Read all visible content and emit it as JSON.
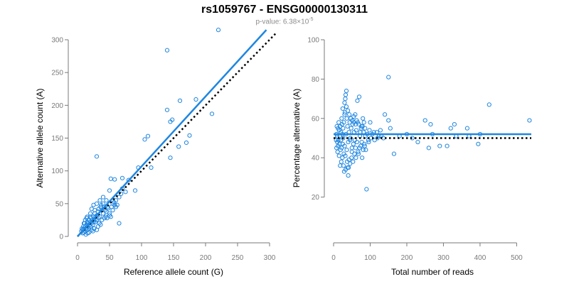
{
  "title": "rs1059767 - ENSG00000130311",
  "subtitle": {
    "prefix": "p-value: 6.38×10",
    "exponent": "-5"
  },
  "colors": {
    "accent": "#1f86e0",
    "points": "#1f86e0",
    "axis": "#7a7a7a",
    "reference_line": "#000000"
  },
  "chart_data": [
    {
      "type": "scatter",
      "xlabel": "Reference allele count (G)",
      "ylabel": "Alternative allele count (A)",
      "xlim": [
        0,
        300
      ],
      "ylim": [
        0,
        300
      ],
      "xticks": [
        "0",
        "50",
        "100",
        "150",
        "200",
        "250",
        "300"
      ],
      "yticks": [
        "0",
        "50",
        "100",
        "150",
        "200",
        "250",
        "300"
      ],
      "fit_line": {
        "style": "solid",
        "x": [
          0,
          295
        ],
        "y": [
          0,
          315
        ]
      },
      "reference_line": {
        "style": "dotted",
        "x": [
          0,
          310
        ],
        "y": [
          0,
          310
        ]
      },
      "points": [
        [
          220,
          315
        ],
        [
          140,
          284
        ],
        [
          30,
          122
        ],
        [
          185,
          209
        ],
        [
          210,
          187
        ],
        [
          160,
          207
        ],
        [
          140,
          193
        ],
        [
          145,
          175
        ],
        [
          148,
          178
        ],
        [
          170,
          143
        ],
        [
          175,
          154
        ],
        [
          158,
          137
        ],
        [
          145,
          120
        ],
        [
          105,
          148
        ],
        [
          110,
          153
        ],
        [
          115,
          105
        ],
        [
          95,
          105
        ],
        [
          90,
          70
        ],
        [
          80,
          86
        ],
        [
          70,
          89
        ],
        [
          70,
          73
        ],
        [
          75,
          68
        ],
        [
          65,
          20
        ],
        [
          60,
          55
        ],
        [
          58,
          48
        ],
        [
          55,
          50
        ],
        [
          52,
          88
        ],
        [
          58,
          87
        ],
        [
          50,
          70
        ],
        [
          48,
          43
        ],
        [
          45,
          38
        ],
        [
          42,
          45
        ],
        [
          40,
          35
        ],
        [
          40,
          50
        ],
        [
          38,
          40
        ],
        [
          35,
          30
        ],
        [
          36,
          45
        ],
        [
          33,
          28
        ],
        [
          32,
          38
        ],
        [
          30,
          32
        ],
        [
          30,
          25
        ],
        [
          28,
          30
        ],
        [
          27,
          35
        ],
        [
          26,
          25
        ],
        [
          25,
          22
        ],
        [
          25,
          30
        ],
        [
          24,
          18
        ],
        [
          23,
          25
        ],
        [
          22,
          20
        ],
        [
          21,
          28
        ],
        [
          20,
          15
        ],
        [
          20,
          22
        ],
        [
          19,
          18
        ],
        [
          18,
          25
        ],
        [
          18,
          12
        ],
        [
          17,
          20
        ],
        [
          16,
          15
        ],
        [
          15,
          22
        ],
        [
          15,
          10
        ],
        [
          14,
          18
        ],
        [
          13,
          12
        ],
        [
          12,
          15
        ],
        [
          12,
          8
        ],
        [
          11,
          20
        ],
        [
          10,
          12
        ],
        [
          10,
          6
        ],
        [
          9,
          15
        ],
        [
          8,
          10
        ],
        [
          8,
          5
        ],
        [
          7,
          12
        ],
        [
          6,
          8
        ],
        [
          12,
          25
        ],
        [
          14,
          28
        ],
        [
          20,
          35
        ],
        [
          22,
          42
        ],
        [
          28,
          22
        ],
        [
          34,
          20
        ],
        [
          38,
          25
        ],
        [
          44,
          30
        ],
        [
          46,
          28
        ],
        [
          50,
          35
        ],
        [
          52,
          30
        ],
        [
          35,
          55
        ],
        [
          30,
          50
        ],
        [
          25,
          48
        ],
        [
          15,
          30
        ],
        [
          10,
          20
        ],
        [
          40,
          60
        ],
        [
          45,
          55
        ],
        [
          55,
          40
        ],
        [
          60,
          45
        ],
        [
          65,
          60
        ],
        [
          50,
          32
        ],
        [
          42,
          28
        ],
        [
          36,
          18
        ],
        [
          32,
          15
        ],
        [
          26,
          12
        ],
        [
          22,
          10
        ],
        [
          18,
          6
        ],
        [
          24,
          8
        ],
        [
          16,
          5
        ],
        [
          13,
          3
        ],
        [
          30,
          10
        ],
        [
          20,
          30
        ],
        [
          27,
          40
        ],
        [
          33,
          42
        ],
        [
          37,
          48
        ],
        [
          43,
          40
        ],
        [
          47,
          45
        ],
        [
          53,
          45
        ],
        [
          57,
          52
        ],
        [
          62,
          48
        ],
        [
          68,
          65
        ]
      ]
    },
    {
      "type": "scatter",
      "xlabel": "Total number of reads",
      "ylabel": "Percentage alternative (A)",
      "xlim": [
        0,
        540
      ],
      "ylim": [
        0,
        100
      ],
      "xticks": [
        "0",
        "100",
        "200",
        "300",
        "400",
        "500"
      ],
      "yticks": [
        "20",
        "40",
        "60",
        "80",
        "100"
      ],
      "fit_line": {
        "style": "solid",
        "x": [
          0,
          540
        ],
        "y": [
          52,
          52
        ]
      },
      "reference_line": {
        "style": "dotted",
        "x": [
          0,
          540
        ],
        "y": [
          50,
          50
        ]
      },
      "points": [
        [
          150,
          81
        ],
        [
          425,
          67
        ],
        [
          535,
          59
        ],
        [
          90,
          24
        ],
        [
          165,
          42
        ],
        [
          150,
          59
        ],
        [
          140,
          62
        ],
        [
          155,
          55
        ],
        [
          180,
          51
        ],
        [
          200,
          52
        ],
        [
          215,
          50
        ],
        [
          230,
          48
        ],
        [
          250,
          59
        ],
        [
          260,
          45
        ],
        [
          265,
          57
        ],
        [
          270,
          52
        ],
        [
          290,
          46
        ],
        [
          310,
          46
        ],
        [
          320,
          55
        ],
        [
          330,
          57
        ],
        [
          335,
          51
        ],
        [
          365,
          55
        ],
        [
          370,
          51
        ],
        [
          395,
          47
        ],
        [
          400,
          52
        ],
        [
          130,
          51
        ],
        [
          120,
          50
        ],
        [
          110,
          53
        ],
        [
          100,
          58
        ],
        [
          95,
          49
        ],
        [
          80,
          60
        ],
        [
          75,
          55
        ],
        [
          70,
          71
        ],
        [
          65,
          69
        ],
        [
          60,
          57
        ],
        [
          55,
          61
        ],
        [
          50,
          45
        ],
        [
          45,
          49
        ],
        [
          42,
          53
        ],
        [
          40,
          31
        ],
        [
          38,
          35
        ],
        [
          36,
          60
        ],
        [
          35,
          74
        ],
        [
          33,
          72
        ],
        [
          32,
          70
        ],
        [
          30,
          68
        ],
        [
          30,
          62
        ],
        [
          28,
          58
        ],
        [
          28,
          42
        ],
        [
          26,
          55
        ],
        [
          26,
          50
        ],
        [
          25,
          47
        ],
        [
          24,
          40
        ],
        [
          24,
          52
        ],
        [
          23,
          57
        ],
        [
          22,
          45
        ],
        [
          22,
          60
        ],
        [
          21,
          38
        ],
        [
          20,
          53
        ],
        [
          20,
          49
        ],
        [
          19,
          44
        ],
        [
          18,
          56
        ],
        [
          18,
          36
        ],
        [
          17,
          51
        ],
        [
          16,
          47
        ],
        [
          15,
          54
        ],
        [
          15,
          41
        ],
        [
          14,
          58
        ],
        [
          13,
          49
        ],
        [
          12,
          46
        ],
        [
          12,
          55
        ],
        [
          11,
          43
        ],
        [
          10,
          51
        ],
        [
          10,
          48
        ],
        [
          9,
          56
        ],
        [
          8,
          45
        ],
        [
          8,
          52
        ],
        [
          7,
          49
        ],
        [
          30,
          46
        ],
        [
          32,
          41
        ],
        [
          34,
          52
        ],
        [
          36,
          44
        ],
        [
          38,
          56
        ],
        [
          40,
          48
        ],
        [
          42,
          39
        ],
        [
          44,
          58
        ],
        [
          46,
          50
        ],
        [
          48,
          55
        ],
        [
          50,
          43
        ],
        [
          52,
          57
        ],
        [
          54,
          47
        ],
        [
          56,
          53
        ],
        [
          58,
          49
        ],
        [
          60,
          45
        ],
        [
          62,
          54
        ],
        [
          64,
          48
        ],
        [
          66,
          58
        ],
        [
          68,
          42
        ],
        [
          72,
          51
        ],
        [
          74,
          46
        ],
        [
          76,
          56
        ],
        [
          78,
          40
        ],
        [
          82,
          53
        ],
        [
          84,
          47
        ],
        [
          86,
          55
        ],
        [
          88,
          44
        ],
        [
          92,
          52
        ],
        [
          96,
          48
        ],
        [
          98,
          54
        ],
        [
          102,
          50
        ],
        [
          106,
          52
        ],
        [
          112,
          49
        ],
        [
          118,
          53
        ],
        [
          124,
          51
        ],
        [
          128,
          54
        ],
        [
          136,
          50
        ],
        [
          25,
          65
        ],
        [
          27,
          36
        ],
        [
          29,
          33
        ],
        [
          31,
          63
        ],
        [
          33,
          34
        ],
        [
          35,
          66
        ],
        [
          37,
          38
        ],
        [
          39,
          64
        ],
        [
          41,
          35
        ],
        [
          43,
          62
        ],
        [
          45,
          37
        ],
        [
          47,
          60
        ],
        [
          49,
          40
        ],
        [
          51,
          59
        ],
        [
          53,
          38
        ],
        [
          55,
          58
        ],
        [
          57,
          42
        ],
        [
          59,
          62
        ],
        [
          61,
          40
        ],
        [
          63,
          59
        ],
        [
          67,
          43
        ],
        [
          69,
          57
        ],
        [
          71,
          45
        ],
        [
          73,
          53
        ],
        [
          77,
          48
        ],
        [
          79,
          56
        ],
        [
          81,
          44
        ],
        [
          83,
          58
        ],
        [
          85,
          46
        ],
        [
          87,
          51
        ]
      ]
    }
  ]
}
